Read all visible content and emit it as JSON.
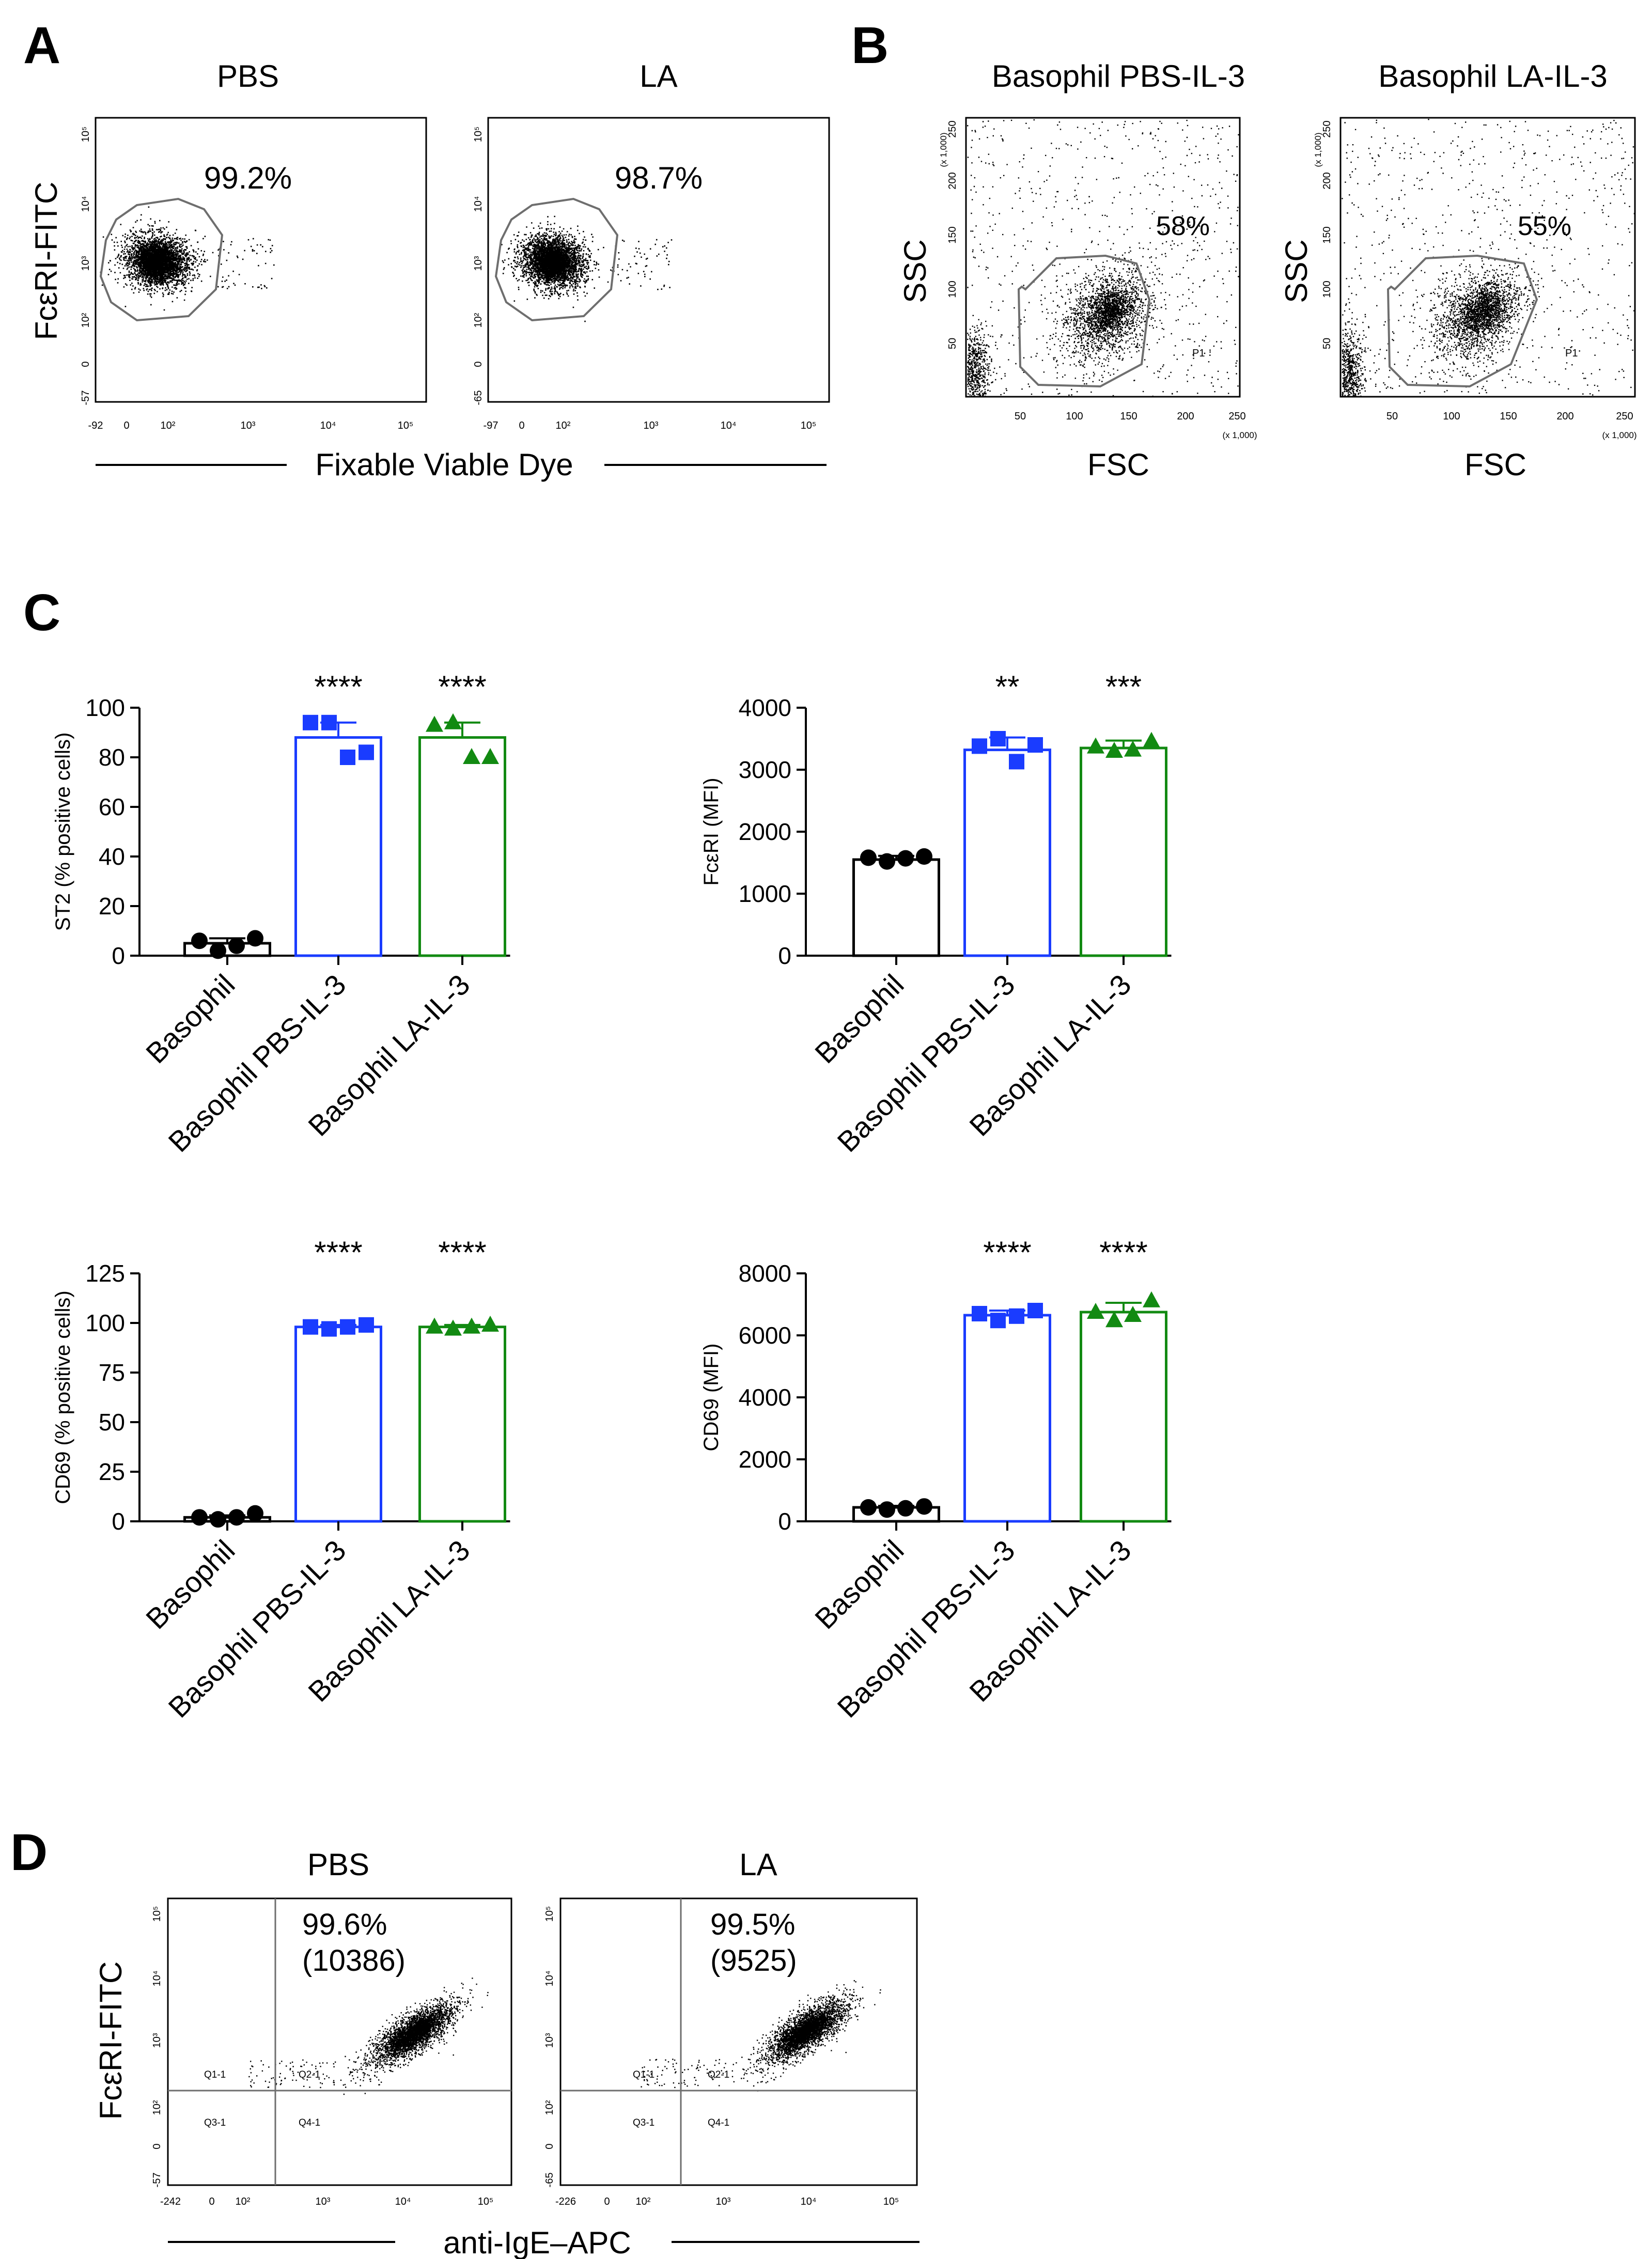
{
  "colors": {
    "black": "#000000",
    "blue": "#1a3cff",
    "green": "#128a12",
    "gate": "#6e6e6e"
  },
  "panel_a": {
    "letter": "A",
    "xaxis_label": "Fixable Viable Dye",
    "yaxis_label": "FcεRI-FITC",
    "plots": [
      {
        "title": "PBS",
        "percent": "99.2%",
        "xticks": [
          "-92",
          "0",
          "10²",
          "10³",
          "10⁴",
          "10⁵"
        ],
        "yticks": [
          "-57",
          "0",
          "10²",
          "10³",
          "10⁴",
          "10⁵"
        ]
      },
      {
        "title": "LA",
        "percent": "98.7%",
        "xticks": [
          "-97",
          "0",
          "10²",
          "10³",
          "10⁴",
          "10⁵"
        ],
        "yticks": [
          "-65",
          "0",
          "10²",
          "10³",
          "10⁴",
          "10⁵"
        ]
      }
    ]
  },
  "panel_b": {
    "letter": "B",
    "xlabel": "FSC",
    "ylabel": "SSC",
    "gate_label": "P1",
    "scale_label": "(x 1,000)",
    "xticks": [
      "50",
      "100",
      "150",
      "200",
      "250"
    ],
    "yticks": [
      "50",
      "100",
      "150",
      "200",
      "250"
    ],
    "plots": [
      {
        "title": "Basophil PBS-IL-3",
        "percent": "58%"
      },
      {
        "title": "Basophil LA-IL-3",
        "percent": "55%"
      }
    ]
  },
  "panel_c_letter": "C",
  "chart_data": [
    {
      "type": "bar",
      "panel": "C",
      "ylabel": "ST2 (% positive cells)",
      "ylim": [
        0,
        100
      ],
      "yticks": [
        0,
        20,
        40,
        60,
        80,
        100
      ],
      "categories": [
        "Basophil",
        "Basophil PBS-IL-3",
        "Basophil LA-IL-3"
      ],
      "values": [
        5,
        88,
        88
      ],
      "sd": [
        2,
        6,
        6
      ],
      "significance": [
        "",
        "****",
        "****"
      ],
      "points": [
        [
          6,
          2,
          4,
          7
        ],
        [
          94,
          94,
          80,
          82
        ],
        [
          93,
          94,
          80,
          80
        ]
      ]
    },
    {
      "type": "bar",
      "panel": "C",
      "ylabel": "FcεRI (MFI)",
      "ylim": [
        0,
        4000
      ],
      "yticks": [
        0,
        1000,
        2000,
        3000,
        4000
      ],
      "categories": [
        "Basophil",
        "Basophil PBS-IL-3",
        "Basophil LA-IL-3"
      ],
      "values": [
        1550,
        3320,
        3350
      ],
      "sd": [
        60,
        200,
        120
      ],
      "significance": [
        "",
        "**",
        "***"
      ],
      "points": [
        [
          1580,
          1520,
          1570,
          1600
        ],
        [
          3380,
          3500,
          3130,
          3400
        ],
        [
          3370,
          3300,
          3320,
          3460
        ]
      ]
    },
    {
      "type": "bar",
      "panel": "C",
      "ylabel": "CD69 (% positive cells)",
      "ylim": [
        0,
        125
      ],
      "yticks": [
        0,
        25,
        50,
        75,
        100,
        125
      ],
      "categories": [
        "Basophil",
        "Basophil PBS-IL-3",
        "Basophil LA-IL-3"
      ],
      "values": [
        2,
        98,
        98
      ],
      "sd": [
        1,
        1,
        1
      ],
      "significance": [
        "",
        "****",
        "****"
      ],
      "points": [
        [
          2,
          1,
          2,
          4
        ],
        [
          98,
          97,
          98,
          99
        ],
        [
          98,
          97,
          98,
          99
        ]
      ]
    },
    {
      "type": "bar",
      "panel": "C",
      "ylabel": "CD69 (MFI)",
      "ylim": [
        0,
        8000
      ],
      "yticks": [
        0,
        2000,
        4000,
        6000,
        8000
      ],
      "categories": [
        "Basophil",
        "Basophil PBS-IL-3",
        "Basophil LA-IL-3"
      ],
      "values": [
        450,
        6650,
        6750
      ],
      "sd": [
        50,
        150,
        300
      ],
      "significance": [
        "",
        "****",
        "****"
      ],
      "points": [
        [
          450,
          380,
          420,
          480
        ],
        [
          6700,
          6480,
          6620,
          6800
        ],
        [
          6750,
          6480,
          6650,
          7120
        ]
      ]
    }
  ],
  "panel_d": {
    "letter": "D",
    "xaxis_label": "anti-IgE–APC",
    "yaxis_label": "FcεRI-FITC",
    "quadrants": [
      "Q1-1",
      "Q2-1",
      "Q3-1",
      "Q4-1"
    ],
    "plots": [
      {
        "title": "PBS",
        "percent": "99.6%",
        "mfi": "(10386)",
        "xticks": [
          "-242",
          "0",
          "10²",
          "10³",
          "10⁴",
          "10⁵"
        ],
        "yticks": [
          "-57",
          "0",
          "10²",
          "10³",
          "10⁴",
          "10⁵"
        ]
      },
      {
        "title": "LA",
        "percent": "99.5%",
        "mfi": "(9525)",
        "xticks": [
          "-226",
          "0",
          "10²",
          "10³",
          "10⁴",
          "10⁵"
        ],
        "yticks": [
          "-65",
          "0",
          "10²",
          "10³",
          "10⁴",
          "10⁵"
        ]
      }
    ]
  }
}
